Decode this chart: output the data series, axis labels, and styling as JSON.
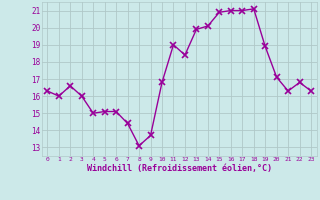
{
  "x": [
    0,
    1,
    2,
    3,
    4,
    5,
    6,
    7,
    8,
    9,
    10,
    11,
    12,
    13,
    14,
    15,
    16,
    17,
    18,
    19,
    20,
    21,
    22,
    23
  ],
  "y": [
    16.3,
    16.0,
    16.6,
    16.0,
    15.0,
    15.1,
    15.1,
    14.4,
    13.1,
    13.7,
    16.8,
    19.0,
    18.4,
    19.9,
    20.1,
    20.9,
    21.0,
    21.0,
    21.1,
    18.9,
    17.1,
    16.3,
    16.8,
    16.3
  ],
  "line_color": "#990099",
  "marker": "x",
  "marker_size": 4,
  "linewidth": 1.0,
  "bg_color": "#cce9e9",
  "grid_color": "#b0c8c8",
  "xlabel": "Windchill (Refroidissement éolien,°C)",
  "xlabel_color": "#990099",
  "tick_color": "#990099",
  "ylim": [
    12.5,
    21.5
  ],
  "yticks": [
    13,
    14,
    15,
    16,
    17,
    18,
    19,
    20,
    21
  ],
  "xticks": [
    0,
    1,
    2,
    3,
    4,
    5,
    6,
    7,
    8,
    9,
    10,
    11,
    12,
    13,
    14,
    15,
    16,
    17,
    18,
    19,
    20,
    21,
    22,
    23
  ],
  "font_family": "monospace"
}
